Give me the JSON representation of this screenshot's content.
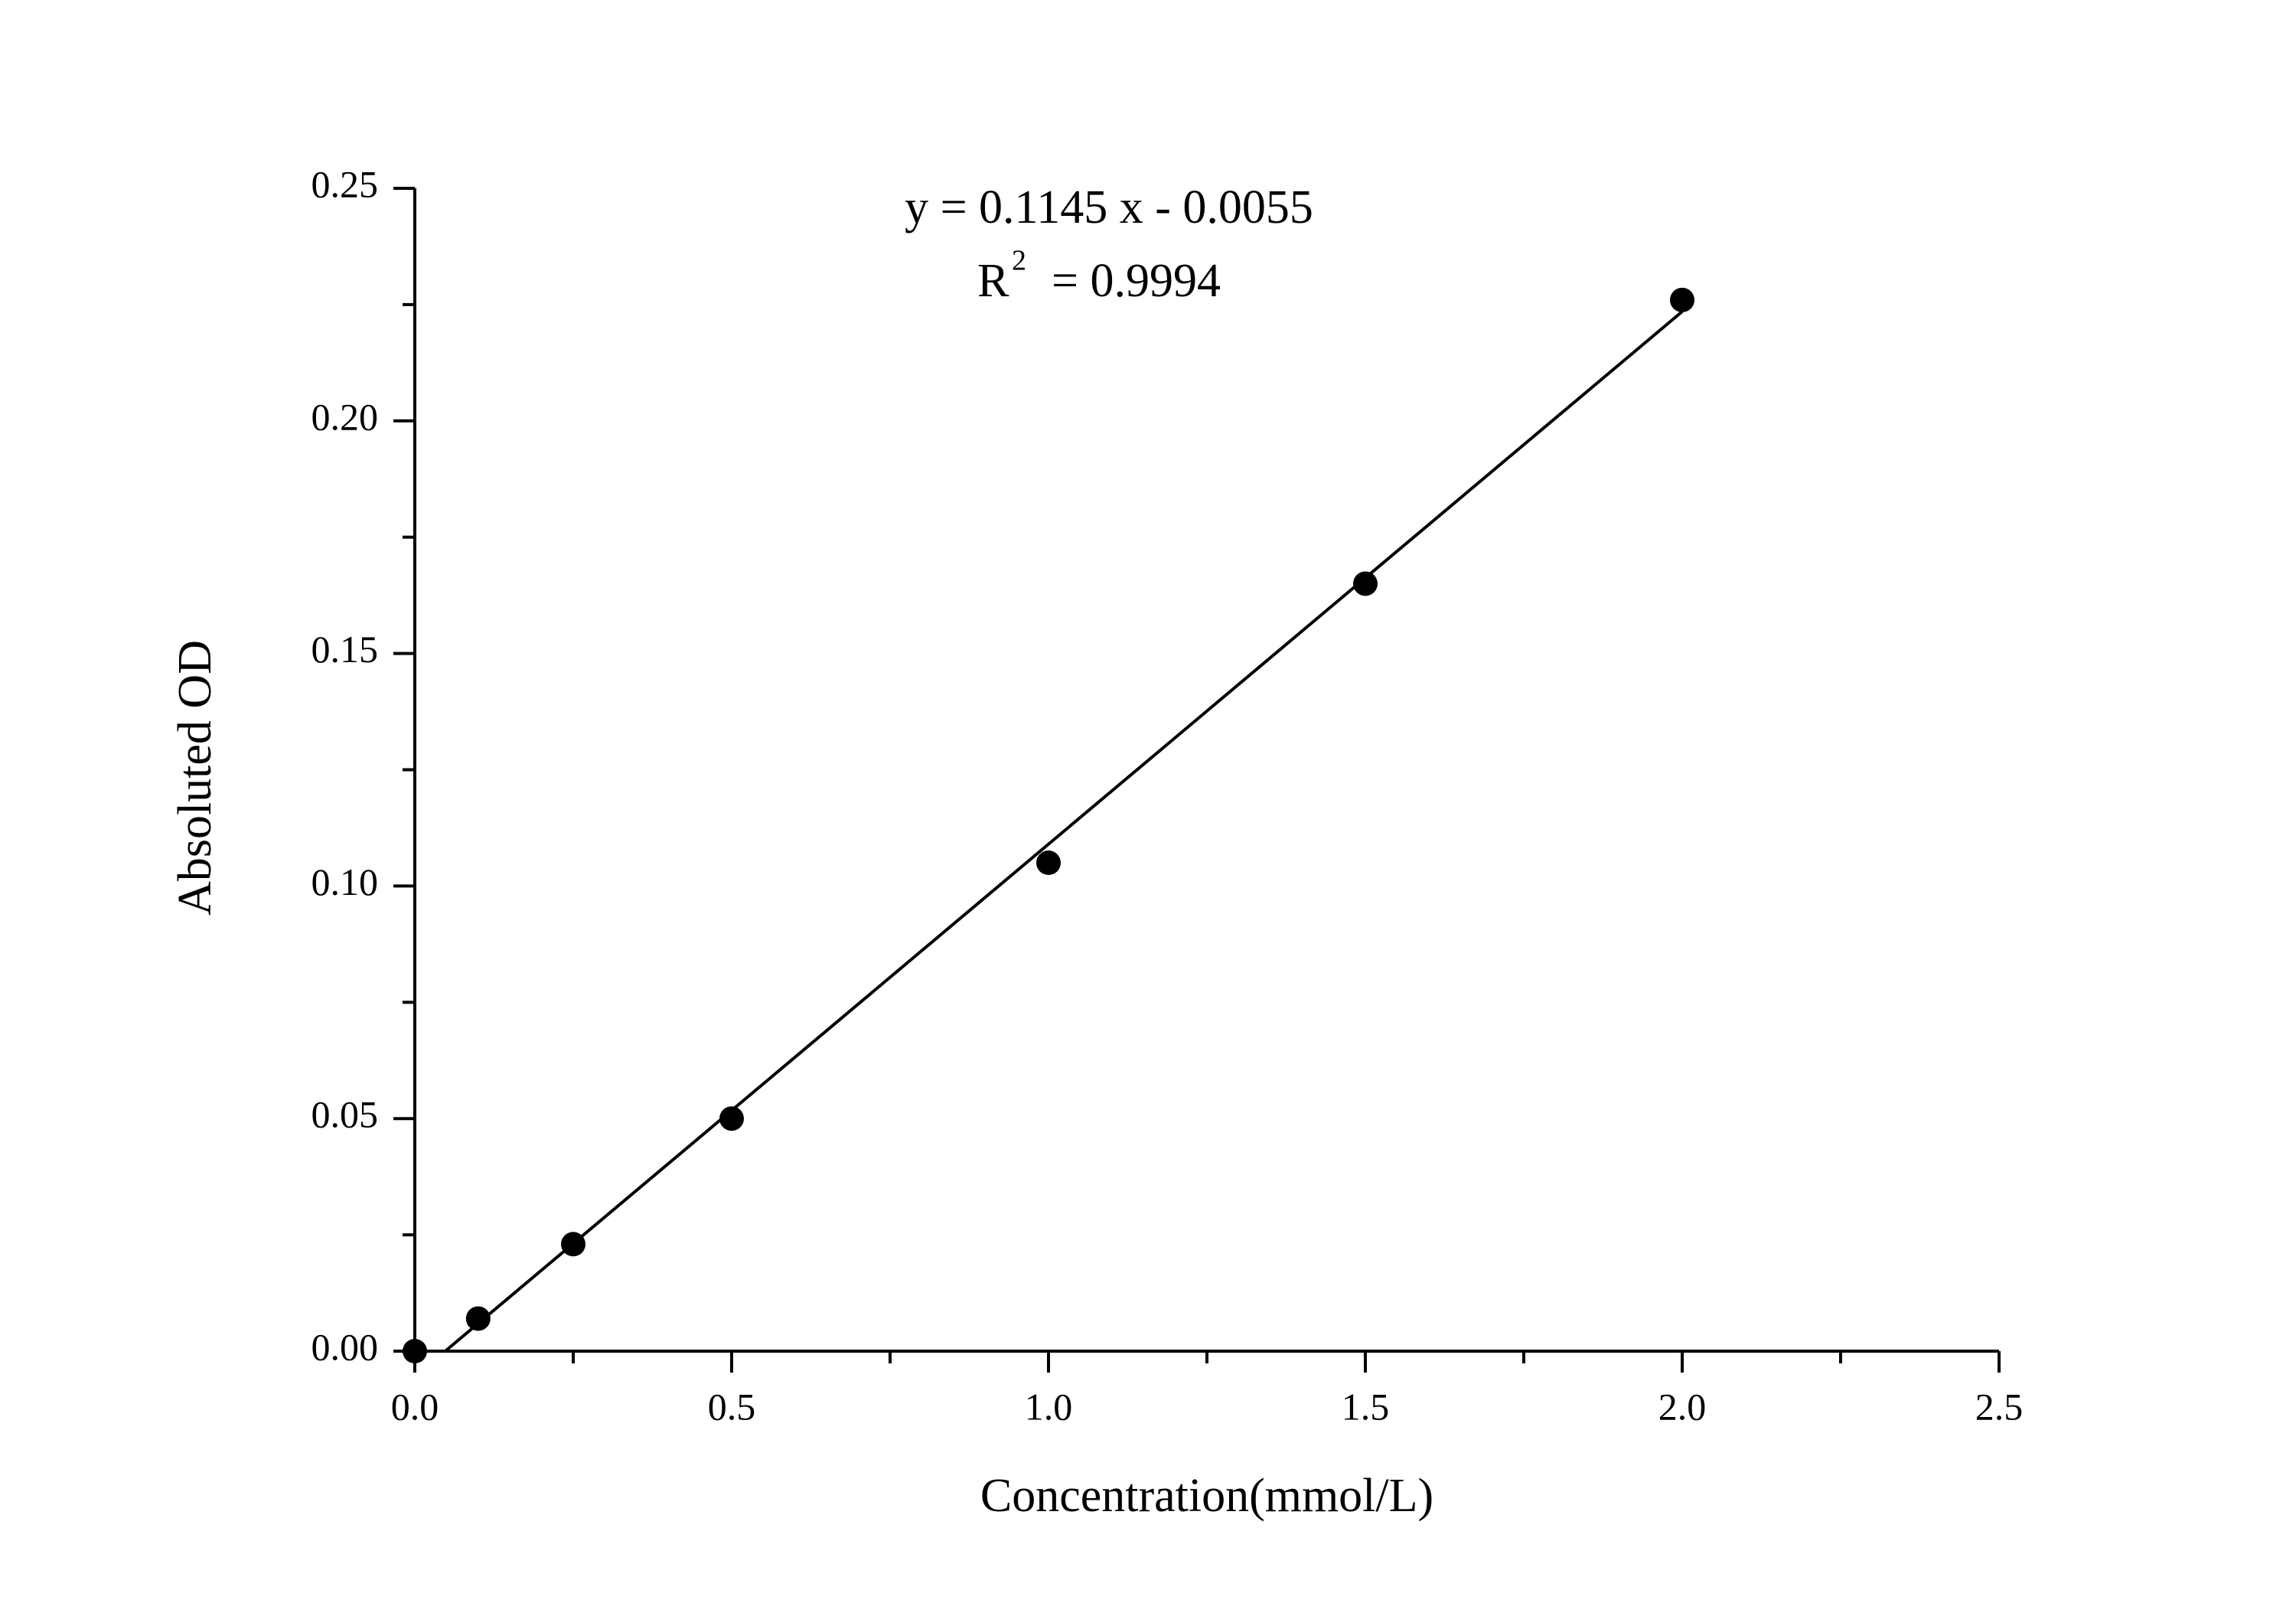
{
  "chart_data": {
    "type": "scatter",
    "x_label": "Concentration(mmol/L)",
    "y_label": "Absoluted OD",
    "equation": "y = 0.1145 x - 0.0055",
    "r2_symbol": "R",
    "r2_exponent": "2",
    "r2_value": "= 0.9994",
    "series": [
      {
        "color": "#000000",
        "x": [
          0,
          0.1,
          0.25,
          0.5,
          1.0,
          1.5,
          2.0
        ],
        "values": [
          0,
          0.007,
          0.023,
          0.05,
          0.105,
          0.165,
          0.226
        ]
      }
    ],
    "fit": {
      "color": "#000000",
      "x": [
        0.048,
        2.0
      ],
      "values": [
        0,
        0.2235
      ]
    },
    "xlim": [
      0,
      2.5
    ],
    "ylim": [
      0,
      0.25
    ],
    "xticks": [
      {
        "value": 0,
        "label": "0.0"
      },
      {
        "value": 0.5,
        "label": "0.5"
      },
      {
        "value": 1,
        "label": "1.0"
      },
      {
        "value": 1.5,
        "label": "1.5"
      },
      {
        "value": 2,
        "label": "2.0"
      },
      {
        "value": 2.5,
        "label": "2.5"
      }
    ],
    "yticks": [
      {
        "value": 0,
        "label": "0.00"
      },
      {
        "value": 0.05,
        "label": "0.05"
      },
      {
        "value": 0.1,
        "label": "0.10"
      },
      {
        "value": 0.15,
        "label": "0.15"
      },
      {
        "value": 0.2,
        "label": "0.20"
      },
      {
        "value": 0.25,
        "label": "0.25"
      }
    ],
    "xminorticks": [
      0.25,
      0.75,
      1.25,
      1.75,
      2.25
    ],
    "yminorticks": [
      0.025,
      0.075,
      0.125,
      0.175,
      0.225
    ],
    "grid": false
  }
}
